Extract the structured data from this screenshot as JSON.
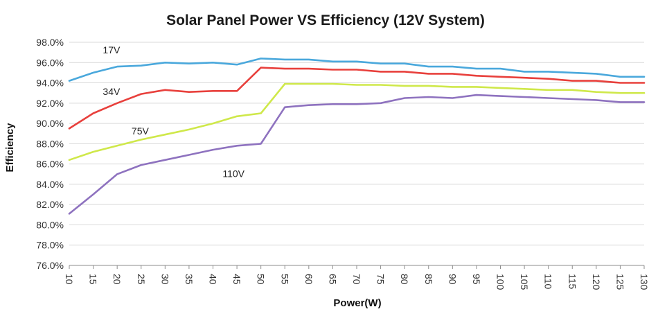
{
  "chart_data": {
    "type": "line",
    "title": "Solar Panel Power VS Efficiency (12V System)",
    "xlabel": "Power(W)",
    "ylabel": "Efficiency",
    "x": [
      10,
      15,
      20,
      25,
      30,
      35,
      40,
      45,
      50,
      55,
      60,
      65,
      70,
      75,
      80,
      85,
      90,
      95,
      100,
      105,
      110,
      115,
      120,
      125,
      130
    ],
    "x_tick_labels": [
      "10",
      "15",
      "20",
      "25",
      "30",
      "35",
      "40",
      "45",
      "50",
      "55",
      "60",
      "65",
      "70",
      "75",
      "80",
      "85",
      "90",
      "95",
      "100",
      "105",
      "110",
      "115",
      "120",
      "125",
      "130"
    ],
    "y_tick_labels": [
      "76.0%",
      "78.0%",
      "80.0%",
      "82.0%",
      "84.0%",
      "86.0%",
      "88.0%",
      "90.0%",
      "92.0%",
      "94.0%",
      "96.0%",
      "98.0%"
    ],
    "y_ticks": [
      76,
      78,
      80,
      82,
      84,
      86,
      88,
      90,
      92,
      94,
      96,
      98
    ],
    "xlim": [
      10,
      130
    ],
    "ylim": [
      76,
      98
    ],
    "grid": "horizontal",
    "legend": "inline labels",
    "series": [
      {
        "name": "17V",
        "color": "#4aa8dc",
        "label_at": [
          17,
          96.9
        ],
        "values": [
          94.2,
          95.0,
          95.6,
          95.7,
          96.0,
          95.9,
          96.0,
          95.8,
          96.4,
          96.3,
          96.3,
          96.1,
          96.1,
          95.9,
          95.9,
          95.6,
          95.6,
          95.4,
          95.4,
          95.1,
          95.1,
          95.0,
          94.9,
          94.6,
          94.6
        ]
      },
      {
        "name": "34V",
        "color": "#e8403c",
        "label_at": [
          17,
          92.8
        ],
        "values": [
          89.5,
          91.0,
          92.0,
          92.9,
          93.3,
          93.1,
          93.2,
          93.2,
          95.5,
          95.4,
          95.4,
          95.3,
          95.3,
          95.1,
          95.1,
          94.9,
          94.9,
          94.7,
          94.6,
          94.5,
          94.4,
          94.2,
          94.2,
          94.0,
          94.0
        ]
      },
      {
        "name": "75V",
        "color": "#cfe84a",
        "label_at": [
          23,
          88.9
        ],
        "values": [
          86.4,
          87.2,
          87.8,
          88.4,
          88.9,
          89.4,
          90.0,
          90.7,
          91.0,
          93.9,
          93.9,
          93.9,
          93.8,
          93.8,
          93.7,
          93.7,
          93.6,
          93.6,
          93.5,
          93.4,
          93.3,
          93.3,
          93.1,
          93.0,
          93.0
        ]
      },
      {
        "name": "110V",
        "color": "#8e72bf",
        "label_at": [
          42,
          84.7
        ],
        "values": [
          81.1,
          83.0,
          85.0,
          85.9,
          86.4,
          86.9,
          87.4,
          87.8,
          88.0,
          91.6,
          91.8,
          91.9,
          91.9,
          92.0,
          92.5,
          92.6,
          92.5,
          92.8,
          92.7,
          92.6,
          92.5,
          92.4,
          92.3,
          92.1,
          92.1
        ]
      }
    ]
  }
}
